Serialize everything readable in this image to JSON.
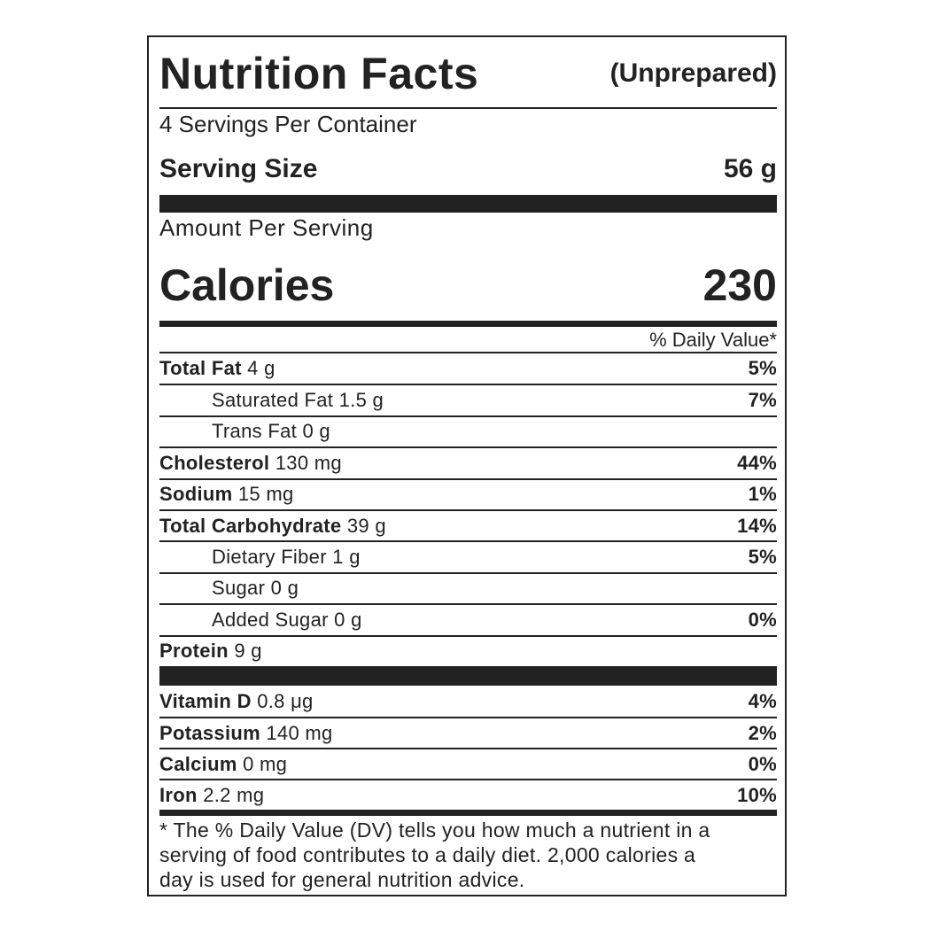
{
  "header": {
    "title": "Nutrition Facts",
    "qualifier": "(Unprepared)"
  },
  "servings": "4 Servings Per Container",
  "serving_size": {
    "label": "Serving Size",
    "value": "56 g"
  },
  "amount_per_serving": "Amount Per Serving",
  "calories": {
    "label": "Calories",
    "value": "230"
  },
  "daily_value_header": "% Daily Value*",
  "nutrients": [
    {
      "name": "Total Fat",
      "amount": "4 g",
      "dv": "5%"
    },
    {
      "name": "Saturated Fat",
      "amount": "1.5 g",
      "dv": "7%",
      "sub": true
    },
    {
      "name": "Trans Fat",
      "amount": "0 g",
      "sub": true
    },
    {
      "name": "Cholesterol",
      "amount": "130 mg",
      "dv": "44%"
    },
    {
      "name": "Sodium",
      "amount": "15 mg",
      "dv": "1%"
    },
    {
      "name": "Total Carbohydrate",
      "amount": "39 g",
      "dv": "14%"
    },
    {
      "name": "Dietary Fiber",
      "amount": "1 g",
      "dv": "5%",
      "sub": true
    },
    {
      "name": "Sugar",
      "amount": "0 g",
      "sub": true
    },
    {
      "name": "Added Sugar",
      "amount": "0 g",
      "dv": "0%",
      "sub": true
    },
    {
      "name": "Protein",
      "amount": "9 g"
    }
  ],
  "minerals": [
    {
      "name": "Vitamin D",
      "amount": "0.8 μg",
      "dv": "4%"
    },
    {
      "name": "Potassium",
      "amount": "140 mg",
      "dv": "2%"
    },
    {
      "name": "Calcium",
      "amount": "0 mg",
      "dv": "0%"
    },
    {
      "name": "Iron",
      "amount": "2.2 mg",
      "dv": "10%"
    }
  ],
  "footnote": [
    "* The % Daily Value (DV) tells you how much a nutrient in a",
    "serving of food contributes to a daily diet. 2,000 calories a",
    "day is used for general nutrition advice."
  ]
}
